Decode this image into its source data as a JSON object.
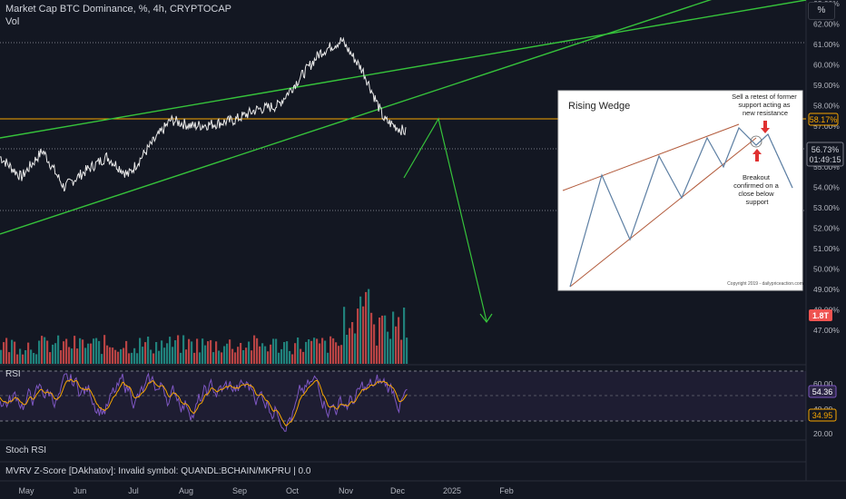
{
  "header": {
    "title": "Market Cap BTC Dominance, %, 4h, CRYPTOCAP",
    "vol_label": "Vol",
    "pct_button": "%"
  },
  "price_axis": {
    "ticks": [
      "63.00%",
      "62.00%",
      "61.00%",
      "60.00%",
      "59.00%",
      "58.00%",
      "57.00%",
      "56.00%",
      "55.00%",
      "54.00%",
      "53.00%",
      "52.00%",
      "51.00%",
      "50.00%",
      "49.00%",
      "48.00%",
      "47.00%"
    ],
    "resistance_tag": "58.17%",
    "price_tag": "56.73%",
    "countdown_tag": "01:49:15",
    "volume_tag": "1.8T",
    "colors": {
      "resistance": "#f7a600",
      "price_tag_bg": "#131722",
      "volume_tag_bg": "#ef5350"
    }
  },
  "time_axis": {
    "labels": [
      "May",
      "Jun",
      "Jul",
      "Aug",
      "Sep",
      "Oct",
      "Nov",
      "Dec",
      "2025",
      "Feb"
    ]
  },
  "inset": {
    "title": "Rising Wedge",
    "annotation_top": "Sell a retest of former support acting as new resistance",
    "annotation_bottom": "Breakout confirmed on a close below support",
    "copyright": "Copyright 2019 - dailypriceaction.com"
  },
  "rsi_panel": {
    "label": "RSI",
    "ticks": [
      "60.00",
      "40.00",
      "20.00"
    ],
    "value_tag": "54.36",
    "ma_tag": "34.95"
  },
  "stoch_rsi_label": "Stoch RSI",
  "mvrv_text": "MVRV Z-Score [DAkhatov]: Invalid symbol: QUANDL:BCHAIN/MKPRU | 0.0",
  "chart_data": {
    "type": "line",
    "title": "Market Cap BTC Dominance, %, 4h, CRYPTOCAP",
    "ylabel": "%",
    "ylim": [
      46.5,
      63.5
    ],
    "x_labels": [
      "May",
      "Jun",
      "Jul",
      "Aug",
      "Sep",
      "Oct",
      "Nov",
      "Dec",
      "2025",
      "Feb"
    ],
    "series": [
      {
        "name": "BTC Dominance",
        "x": [
          "May",
          "May",
          "Jun",
          "Jun",
          "Jun",
          "Jul",
          "Jul",
          "Aug",
          "Aug",
          "Aug",
          "Sep",
          "Sep",
          "Oct",
          "Oct",
          "Nov",
          "Nov",
          "Nov",
          "Nov",
          "Dec",
          "Dec"
        ],
        "values": [
          55.5,
          54.5,
          55.8,
          54.0,
          54.8,
          55.5,
          54.6,
          56.0,
          57.3,
          57.0,
          57.1,
          57.3,
          57.8,
          58.0,
          59.3,
          60.6,
          61.2,
          59.7,
          57.3,
          56.7
        ]
      }
    ],
    "resistance_level": 58.17,
    "last_value": 56.73,
    "rsi_last": 54.36,
    "rsi_ma_last": 34.95,
    "volume_last": "1.8T",
    "grid": false
  },
  "theme": {
    "background": "#131722",
    "line_white": "#e8e8e8",
    "trend_green": "#36c33b",
    "volume_green": "#26a69a",
    "volume_red": "#ef5350",
    "rsi_purple": "#7e57c2",
    "rsi_orange": "#f7a600"
  }
}
